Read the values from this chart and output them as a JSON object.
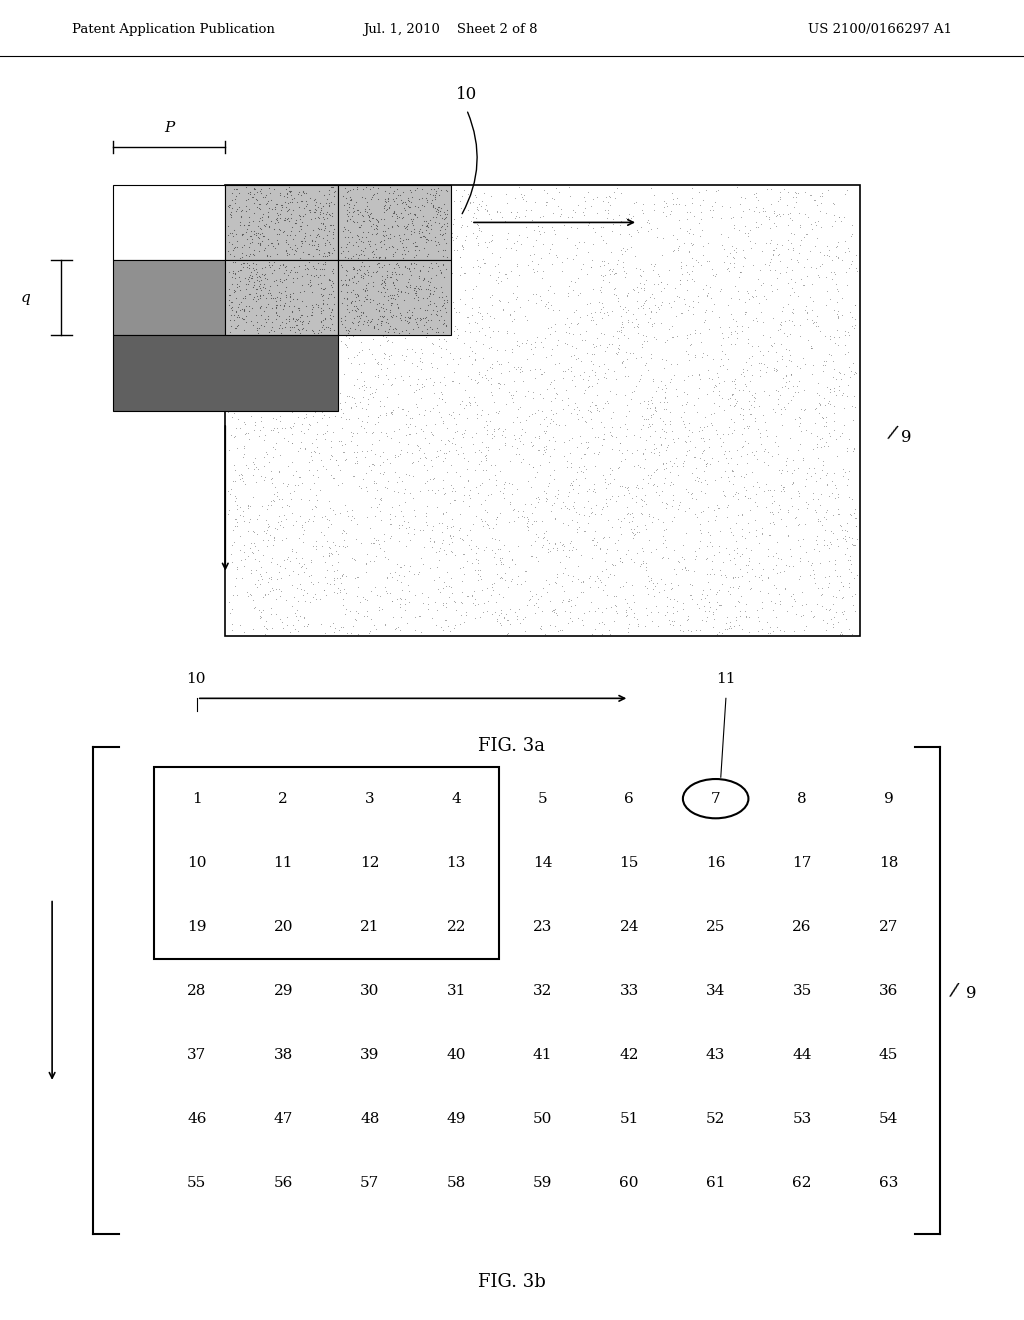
{
  "header_left": "Patent Application Publication",
  "header_center": "Jul. 1, 2010    Sheet 2 of 8",
  "header_right": "US 2100/0166297 A1",
  "fig3a_label": "FIG. 3a",
  "fig3b_label": "FIG. 3b",
  "grid_numbers": [
    [
      1,
      2,
      3,
      4,
      5,
      6,
      7,
      8,
      9
    ],
    [
      10,
      11,
      12,
      13,
      14,
      15,
      16,
      17,
      18
    ],
    [
      19,
      20,
      21,
      22,
      23,
      24,
      25,
      26,
      27
    ],
    [
      28,
      29,
      30,
      31,
      32,
      33,
      34,
      35,
      36
    ],
    [
      37,
      38,
      39,
      40,
      41,
      42,
      43,
      44,
      45
    ],
    [
      46,
      47,
      48,
      49,
      50,
      51,
      52,
      53,
      54
    ],
    [
      55,
      56,
      57,
      58,
      59,
      60,
      61,
      62,
      63
    ]
  ],
  "bg_color": "#ffffff",
  "cell_colors": [
    [
      "#ffffff",
      "#c8c8c8",
      "#c8c8c8"
    ],
    [
      "#888888",
      "#b0b0b0",
      "#b0b0b0"
    ],
    [
      "#606060",
      null,
      null
    ]
  ],
  "dot_fill_color": "#b0b0b0",
  "label_10_fig3a": "10",
  "label_9_fig3a": "9",
  "label_p": "P",
  "label_q": "q",
  "label_10_fig3b": "10",
  "label_11_fig3b": "11",
  "label_9_fig3b": "9"
}
